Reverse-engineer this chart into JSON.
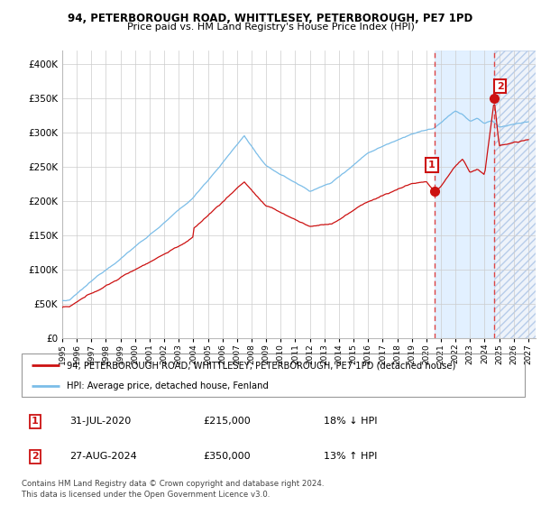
{
  "title": "94, PETERBOROUGH ROAD, WHITTLESEY, PETERBOROUGH, PE7 1PD",
  "subtitle": "Price paid vs. HM Land Registry's House Price Index (HPI)",
  "legend_line1": "94, PETERBOROUGH ROAD, WHITTLESEY, PETERBOROUGH, PE7 1PD (detached house)",
  "legend_line2": "HPI: Average price, detached house, Fenland",
  "annotation1_date": "31-JUL-2020",
  "annotation1_price": "£215,000",
  "annotation1_pct": "18% ↓ HPI",
  "annotation2_date": "27-AUG-2024",
  "annotation2_price": "£350,000",
  "annotation2_pct": "13% ↑ HPI",
  "footnote1": "Contains HM Land Registry data © Crown copyright and database right 2024.",
  "footnote2": "This data is licensed under the Open Government Licence v3.0.",
  "hpi_color": "#7bbde8",
  "price_color": "#cc1111",
  "vline_color": "#dd4444",
  "shade_color": "#ddeeff",
  "hatch_color": "#c8d8f0",
  "ylim": [
    0,
    420000
  ],
  "yticks": [
    0,
    50000,
    100000,
    150000,
    200000,
    250000,
    300000,
    350000,
    400000
  ],
  "xlim_start": 1995.0,
  "xlim_end": 2027.5,
  "sale1_x": 2020.58,
  "sale1_y": 215000,
  "sale2_x": 2024.66,
  "sale2_y": 350000
}
